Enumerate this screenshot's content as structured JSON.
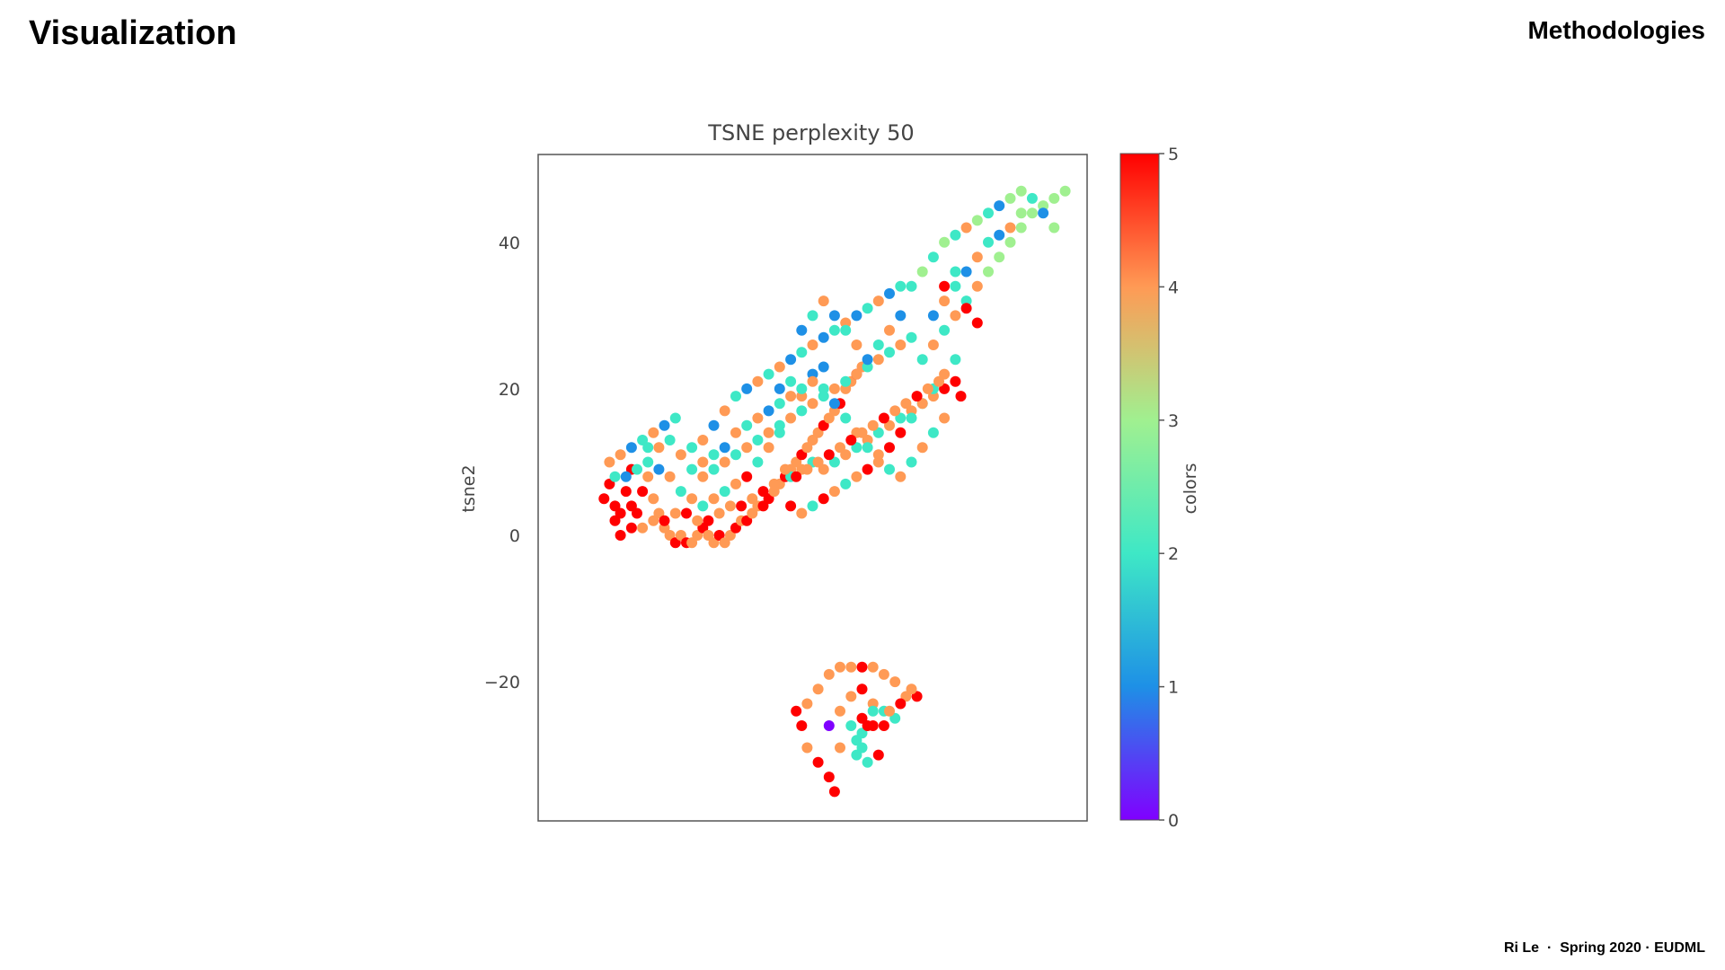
{
  "slide": {
    "title": "Visualization",
    "section": "Methodologies",
    "footer_author": "Ri Le",
    "footer_sep": "·",
    "footer_course": "Spring 2020 · EUDML"
  },
  "chart_data": {
    "type": "scatter",
    "title": "TSNE perplexity 50",
    "xlabel": "",
    "ylabel": "tsne2",
    "xlim": [
      -50,
      50
    ],
    "ylim": [
      -39,
      52
    ],
    "xticks": [],
    "yticks": [
      -20,
      0,
      20,
      40
    ],
    "grid": false,
    "colormap": "rainbow",
    "colorbar": {
      "label": "colors",
      "range": [
        0,
        5
      ],
      "ticks": [
        0,
        1,
        2,
        3,
        4,
        5
      ]
    },
    "point_color_stops": {
      "0": "#8000ff",
      "1": "#1e90e6",
      "2": "#3ee8c6",
      "3": "#a0f090",
      "4": "#ff9a55",
      "5": "#ff0000"
    },
    "points": [
      [
        -38,
        5,
        5
      ],
      [
        -36,
        4,
        5
      ],
      [
        -35,
        3,
        5
      ],
      [
        -37,
        7,
        5
      ],
      [
        -34,
        6,
        5
      ],
      [
        -33,
        4,
        5
      ],
      [
        -36,
        2,
        5
      ],
      [
        -32,
        3,
        5
      ],
      [
        -31,
        6,
        5
      ],
      [
        -33,
        9,
        5
      ],
      [
        -30,
        8,
        4
      ],
      [
        -29,
        5,
        4
      ],
      [
        -28,
        3,
        4
      ],
      [
        -27,
        1,
        4
      ],
      [
        -26,
        0,
        4
      ],
      [
        -25,
        -1,
        5
      ],
      [
        -24,
        0,
        4
      ],
      [
        -23,
        -1,
        5
      ],
      [
        -22,
        -1,
        4
      ],
      [
        -21,
        0,
        4
      ],
      [
        -20,
        1,
        5
      ],
      [
        -19,
        0,
        4
      ],
      [
        -18,
        -1,
        4
      ],
      [
        -17,
        0,
        5
      ],
      [
        -16,
        -1,
        4
      ],
      [
        -15,
        0,
        4
      ],
      [
        -14,
        1,
        5
      ],
      [
        -13,
        2,
        4
      ],
      [
        -12,
        2,
        5
      ],
      [
        -11,
        3,
        4
      ],
      [
        -10,
        4,
        4
      ],
      [
        -9,
        4,
        5
      ],
      [
        -8,
        5,
        5
      ],
      [
        -7,
        6,
        4
      ],
      [
        -6,
        7,
        4
      ],
      [
        -5,
        8,
        5
      ],
      [
        -4,
        9,
        4
      ],
      [
        -3,
        10,
        4
      ],
      [
        -2,
        11,
        5
      ],
      [
        -1,
        12,
        4
      ],
      [
        0,
        13,
        4
      ],
      [
        1,
        14,
        4
      ],
      [
        2,
        15,
        5
      ],
      [
        3,
        16,
        4
      ],
      [
        4,
        17,
        4
      ],
      [
        5,
        18,
        5
      ],
      [
        6,
        20,
        4
      ],
      [
        7,
        21,
        4
      ],
      [
        8,
        22,
        5
      ],
      [
        9,
        23,
        4
      ],
      [
        -37,
        10,
        4
      ],
      [
        -35,
        11,
        4
      ],
      [
        -33,
        12,
        1
      ],
      [
        -31,
        13,
        2
      ],
      [
        -29,
        14,
        4
      ],
      [
        -27,
        15,
        1
      ],
      [
        -25,
        16,
        2
      ],
      [
        -30,
        10,
        2
      ],
      [
        -28,
        9,
        1
      ],
      [
        -26,
        8,
        4
      ],
      [
        -24,
        6,
        2
      ],
      [
        -22,
        5,
        4
      ],
      [
        -20,
        4,
        2
      ],
      [
        -18,
        5,
        4
      ],
      [
        -16,
        6,
        2
      ],
      [
        -14,
        7,
        4
      ],
      [
        -12,
        8,
        5
      ],
      [
        -10,
        10,
        2
      ],
      [
        -8,
        12,
        4
      ],
      [
        -6,
        14,
        2
      ],
      [
        -22,
        12,
        2
      ],
      [
        -20,
        13,
        4
      ],
      [
        -18,
        15,
        1
      ],
      [
        -16,
        17,
        4
      ],
      [
        -14,
        19,
        2
      ],
      [
        -12,
        20,
        1
      ],
      [
        -10,
        21,
        4
      ],
      [
        -8,
        22,
        2
      ],
      [
        -6,
        23,
        4
      ],
      [
        -4,
        24,
        1
      ],
      [
        -2,
        25,
        2
      ],
      [
        0,
        26,
        4
      ],
      [
        2,
        27,
        1
      ],
      [
        4,
        28,
        2
      ],
      [
        6,
        29,
        4
      ],
      [
        8,
        30,
        1
      ],
      [
        10,
        31,
        2
      ],
      [
        12,
        32,
        4
      ],
      [
        14,
        33,
        1
      ],
      [
        16,
        34,
        2
      ],
      [
        -20,
        8,
        4
      ],
      [
        -18,
        9,
        2
      ],
      [
        -16,
        10,
        4
      ],
      [
        -14,
        11,
        2
      ],
      [
        -12,
        12,
        4
      ],
      [
        -10,
        13,
        2
      ],
      [
        -8,
        14,
        4
      ],
      [
        -6,
        15,
        2
      ],
      [
        -4,
        16,
        4
      ],
      [
        -2,
        17,
        2
      ],
      [
        0,
        18,
        4
      ],
      [
        2,
        19,
        2
      ],
      [
        4,
        20,
        4
      ],
      [
        6,
        21,
        2
      ],
      [
        8,
        22,
        4
      ],
      [
        10,
        23,
        2
      ],
      [
        12,
        24,
        4
      ],
      [
        14,
        25,
        2
      ],
      [
        16,
        26,
        4
      ],
      [
        18,
        27,
        2
      ],
      [
        -4,
        8,
        2
      ],
      [
        -2,
        9,
        4
      ],
      [
        0,
        10,
        2
      ],
      [
        2,
        9,
        4
      ],
      [
        4,
        10,
        2
      ],
      [
        6,
        11,
        4
      ],
      [
        8,
        12,
        2
      ],
      [
        10,
        13,
        4
      ],
      [
        12,
        14,
        2
      ],
      [
        14,
        15,
        4
      ],
      [
        16,
        16,
        2
      ],
      [
        18,
        17,
        4
      ],
      [
        20,
        18,
        2
      ],
      [
        22,
        19,
        4
      ],
      [
        24,
        20,
        5
      ],
      [
        26,
        21,
        5
      ],
      [
        27,
        19,
        5
      ],
      [
        -6,
        20,
        1
      ],
      [
        -4,
        21,
        2
      ],
      [
        -2,
        19,
        4
      ],
      [
        0,
        22,
        1
      ],
      [
        2,
        20,
        2
      ],
      [
        4,
        18,
        1
      ],
      [
        6,
        16,
        2
      ],
      [
        8,
        14,
        4
      ],
      [
        10,
        12,
        2
      ],
      [
        12,
        10,
        4
      ],
      [
        14,
        9,
        2
      ],
      [
        16,
        8,
        4
      ],
      [
        18,
        10,
        2
      ],
      [
        20,
        12,
        4
      ],
      [
        22,
        14,
        2
      ],
      [
        24,
        16,
        4
      ],
      [
        20,
        24,
        2
      ],
      [
        22,
        26,
        4
      ],
      [
        24,
        28,
        2
      ],
      [
        26,
        30,
        4
      ],
      [
        28,
        32,
        2
      ],
      [
        30,
        34,
        4
      ],
      [
        32,
        36,
        3
      ],
      [
        34,
        38,
        3
      ],
      [
        36,
        40,
        3
      ],
      [
        38,
        42,
        3
      ],
      [
        40,
        44,
        3
      ],
      [
        42,
        45,
        3
      ],
      [
        44,
        46,
        3
      ],
      [
        46,
        47,
        3
      ],
      [
        18,
        34,
        2
      ],
      [
        20,
        36,
        3
      ],
      [
        22,
        38,
        2
      ],
      [
        24,
        40,
        3
      ],
      [
        26,
        41,
        2
      ],
      [
        28,
        42,
        4
      ],
      [
        30,
        43,
        3
      ],
      [
        32,
        44,
        2
      ],
      [
        34,
        45,
        1
      ],
      [
        36,
        46,
        3
      ],
      [
        38,
        47,
        3
      ],
      [
        40,
        46,
        2
      ],
      [
        42,
        44,
        1
      ],
      [
        44,
        42,
        3
      ],
      [
        22,
        30,
        1
      ],
      [
        24,
        32,
        4
      ],
      [
        26,
        34,
        2
      ],
      [
        28,
        36,
        1
      ],
      [
        30,
        38,
        4
      ],
      [
        32,
        40,
        2
      ],
      [
        34,
        41,
        1
      ],
      [
        36,
        42,
        4
      ],
      [
        38,
        44,
        3
      ],
      [
        16,
        30,
        1
      ],
      [
        14,
        28,
        4
      ],
      [
        12,
        26,
        2
      ],
      [
        10,
        24,
        1
      ],
      [
        8,
        26,
        4
      ],
      [
        6,
        28,
        2
      ],
      [
        4,
        30,
        1
      ],
      [
        2,
        32,
        4
      ],
      [
        0,
        30,
        2
      ],
      [
        -2,
        28,
        1
      ],
      [
        24,
        34,
        5
      ],
      [
        26,
        36,
        2
      ],
      [
        28,
        31,
        5
      ],
      [
        30,
        29,
        5
      ],
      [
        26,
        24,
        2
      ],
      [
        24,
        22,
        4
      ],
      [
        22,
        20,
        2
      ],
      [
        20,
        18,
        4
      ],
      [
        18,
        16,
        2
      ],
      [
        16,
        14,
        5
      ],
      [
        14,
        12,
        5
      ],
      [
        12,
        11,
        4
      ],
      [
        10,
        9,
        5
      ],
      [
        8,
        8,
        4
      ],
      [
        6,
        7,
        2
      ],
      [
        4,
        6,
        4
      ],
      [
        2,
        5,
        5
      ],
      [
        0,
        4,
        2
      ],
      [
        -2,
        3,
        4
      ],
      [
        -4,
        4,
        5
      ],
      [
        -36,
        8,
        2
      ],
      [
        -34,
        8,
        1
      ],
      [
        -32,
        9,
        2
      ],
      [
        -30,
        12,
        2
      ],
      [
        -28,
        12,
        4
      ],
      [
        -26,
        13,
        2
      ],
      [
        -24,
        11,
        4
      ],
      [
        -22,
        9,
        2
      ],
      [
        -20,
        10,
        4
      ],
      [
        -18,
        11,
        2
      ],
      [
        -16,
        12,
        1
      ],
      [
        -14,
        14,
        4
      ],
      [
        -12,
        15,
        2
      ],
      [
        -10,
        16,
        4
      ],
      [
        -8,
        17,
        1
      ],
      [
        -6,
        18,
        2
      ],
      [
        -4,
        19,
        4
      ],
      [
        -2,
        20,
        2
      ],
      [
        0,
        21,
        4
      ],
      [
        2,
        23,
        1
      ],
      [
        -35,
        0,
        5
      ],
      [
        -33,
        1,
        5
      ],
      [
        -31,
        1,
        4
      ],
      [
        -29,
        2,
        4
      ],
      [
        -27,
        2,
        5
      ],
      [
        -25,
        3,
        4
      ],
      [
        -23,
        3,
        5
      ],
      [
        -21,
        2,
        4
      ],
      [
        -19,
        2,
        5
      ],
      [
        -17,
        3,
        4
      ],
      [
        -15,
        4,
        4
      ],
      [
        -13,
        4,
        5
      ],
      [
        -11,
        5,
        4
      ],
      [
        -9,
        6,
        5
      ],
      [
        -7,
        7,
        4
      ],
      [
        -5,
        9,
        4
      ],
      [
        -3,
        8,
        5
      ],
      [
        -1,
        9,
        4
      ],
      [
        1,
        10,
        4
      ],
      [
        3,
        11,
        5
      ],
      [
        5,
        12,
        4
      ],
      [
        7,
        13,
        5
      ],
      [
        9,
        14,
        4
      ],
      [
        11,
        15,
        4
      ],
      [
        13,
        16,
        5
      ],
      [
        15,
        17,
        4
      ],
      [
        17,
        18,
        4
      ],
      [
        19,
        19,
        5
      ],
      [
        21,
        20,
        4
      ],
      [
        23,
        21,
        4
      ],
      [
        -1,
        -23,
        4
      ],
      [
        1,
        -21,
        4
      ],
      [
        3,
        -19,
        4
      ],
      [
        5,
        -18,
        4
      ],
      [
        7,
        -18,
        4
      ],
      [
        9,
        -18,
        5
      ],
      [
        11,
        -18,
        4
      ],
      [
        13,
        -19,
        4
      ],
      [
        15,
        -20,
        4
      ],
      [
        17,
        -22,
        4
      ],
      [
        19,
        -22,
        5
      ],
      [
        -3,
        -24,
        5
      ],
      [
        -2,
        -26,
        5
      ],
      [
        -1,
        -29,
        4
      ],
      [
        1,
        -31,
        5
      ],
      [
        3,
        -33,
        5
      ],
      [
        4,
        -35,
        5
      ],
      [
        5,
        -29,
        4
      ],
      [
        3,
        -26,
        0
      ],
      [
        5,
        -24,
        4
      ],
      [
        7,
        -22,
        4
      ],
      [
        9,
        -21,
        5
      ],
      [
        11,
        -23,
        4
      ],
      [
        9,
        -25,
        5
      ],
      [
        11,
        -26,
        5
      ],
      [
        13,
        -26,
        5
      ],
      [
        15,
        -25,
        2
      ],
      [
        13,
        -24,
        2
      ],
      [
        11,
        -24,
        2
      ],
      [
        9,
        -27,
        2
      ],
      [
        8,
        -28,
        2
      ],
      [
        8,
        -30,
        2
      ],
      [
        9,
        -29,
        2
      ],
      [
        10,
        -31,
        2
      ],
      [
        12,
        -30,
        5
      ],
      [
        14,
        -24,
        4
      ],
      [
        16,
        -23,
        5
      ],
      [
        18,
        -21,
        4
      ],
      [
        7,
        -26,
        2
      ],
      [
        10,
        -26,
        5
      ]
    ]
  }
}
